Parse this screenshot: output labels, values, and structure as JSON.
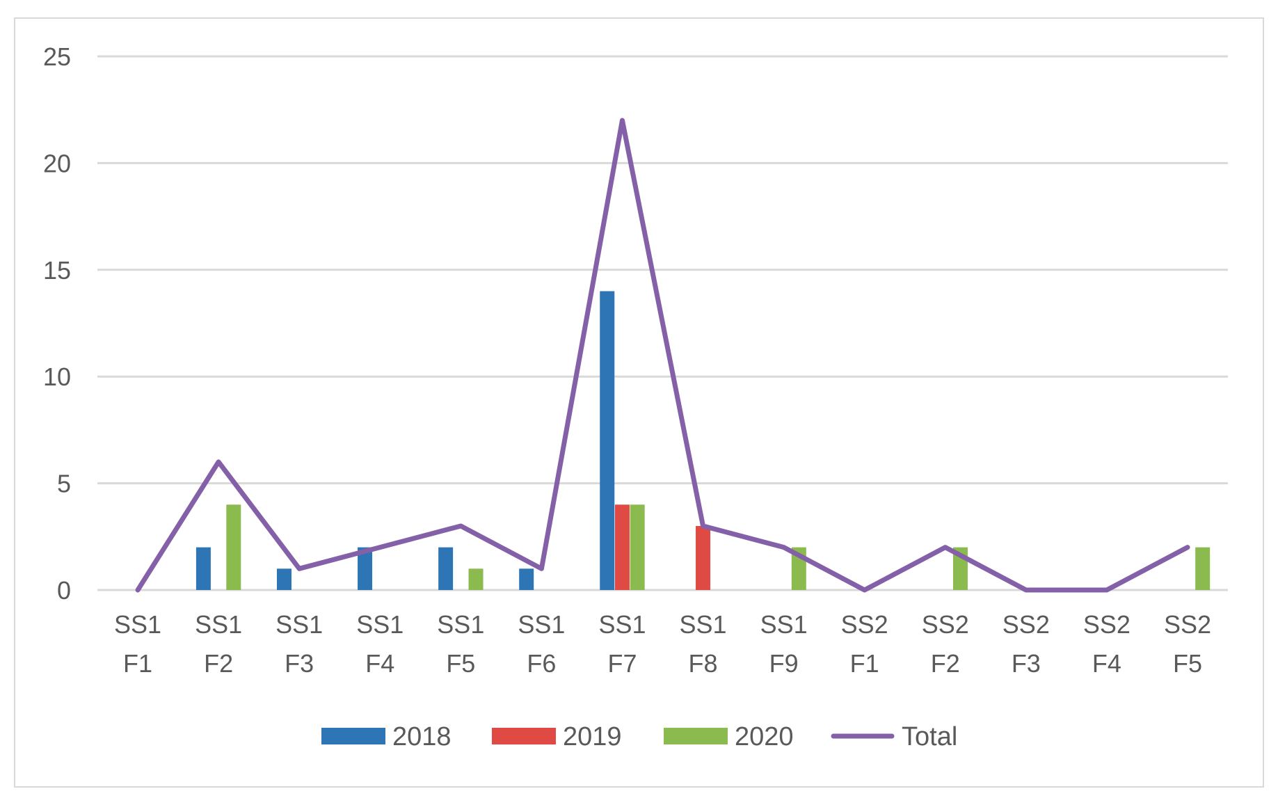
{
  "chart_data": {
    "type": "bar",
    "title": "",
    "xlabel": "",
    "ylabel": "",
    "ylim": [
      0,
      25
    ],
    "yticks": [
      0,
      5,
      10,
      15,
      20,
      25
    ],
    "grid": true,
    "legend_position": "bottom",
    "categories": [
      [
        "SS1",
        "F1"
      ],
      [
        "SS1",
        "F2"
      ],
      [
        "SS1",
        "F3"
      ],
      [
        "SS1",
        "F4"
      ],
      [
        "SS1",
        "F5"
      ],
      [
        "SS1",
        "F6"
      ],
      [
        "SS1",
        "F7"
      ],
      [
        "SS1",
        "F8"
      ],
      [
        "SS1",
        "F9"
      ],
      [
        "SS2",
        "F1"
      ],
      [
        "SS2",
        "F2"
      ],
      [
        "SS2",
        "F3"
      ],
      [
        "SS2",
        "F4"
      ],
      [
        "SS2",
        "F5"
      ]
    ],
    "series": [
      {
        "name": "2018",
        "type": "bar",
        "color": "#2e75b6",
        "values": [
          0,
          2,
          1,
          2,
          2,
          1,
          14,
          0,
          0,
          0,
          0,
          0,
          0,
          0
        ]
      },
      {
        "name": "2019",
        "type": "bar",
        "color": "#e04a45",
        "values": [
          0,
          0,
          0,
          0,
          0,
          0,
          4,
          3,
          0,
          0,
          0,
          0,
          0,
          0
        ]
      },
      {
        "name": "2020",
        "type": "bar",
        "color": "#8bbb4f",
        "values": [
          0,
          4,
          0,
          0,
          1,
          0,
          4,
          0,
          2,
          0,
          2,
          0,
          0,
          2
        ]
      },
      {
        "name": "Total",
        "type": "line",
        "color": "#8460a8",
        "values": [
          0,
          6,
          1,
          2,
          3,
          1,
          22,
          3,
          2,
          0,
          2,
          0,
          0,
          2
        ]
      }
    ]
  }
}
